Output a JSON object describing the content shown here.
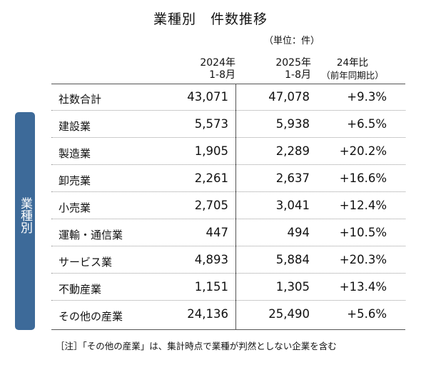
{
  "title": "業種別　件数推移",
  "unit": "（単位：件）",
  "sidebar_label": "業種別",
  "columns": [
    {
      "line1": "2024年",
      "line2": "1-8月"
    },
    {
      "line1": "2025年",
      "line2": "1-8月"
    },
    {
      "line1": "24年比",
      "line2": "（前年同期比）"
    }
  ],
  "rows": [
    {
      "name": "社数合計",
      "v2024": "43,071",
      "v2025": "47,078",
      "ratio": "+9.3%"
    },
    {
      "name": "建設業",
      "v2024": "5,573",
      "v2025": "5,938",
      "ratio": "+6.5%"
    },
    {
      "name": "製造業",
      "v2024": "1,905",
      "v2025": "2,289",
      "ratio": "+20.2%"
    },
    {
      "name": "卸売業",
      "v2024": "2,261",
      "v2025": "2,637",
      "ratio": "+16.6%"
    },
    {
      "name": "小売業",
      "v2024": "2,705",
      "v2025": "3,041",
      "ratio": "+12.4%"
    },
    {
      "name": "運輸・通信業",
      "v2024": "447",
      "v2025": "494",
      "ratio": "+10.5%"
    },
    {
      "name": "サービス業",
      "v2024": "4,893",
      "v2025": "5,884",
      "ratio": "+20.3%"
    },
    {
      "name": "不動産業",
      "v2024": "1,151",
      "v2025": "1,305",
      "ratio": "+13.4%"
    },
    {
      "name": "その他の産業",
      "v2024": "24,136",
      "v2025": "25,490",
      "ratio": "+5.6%"
    }
  ],
  "note": "［注］「その他の産業」は、集計時点で業種が判然としない企業を含む"
}
